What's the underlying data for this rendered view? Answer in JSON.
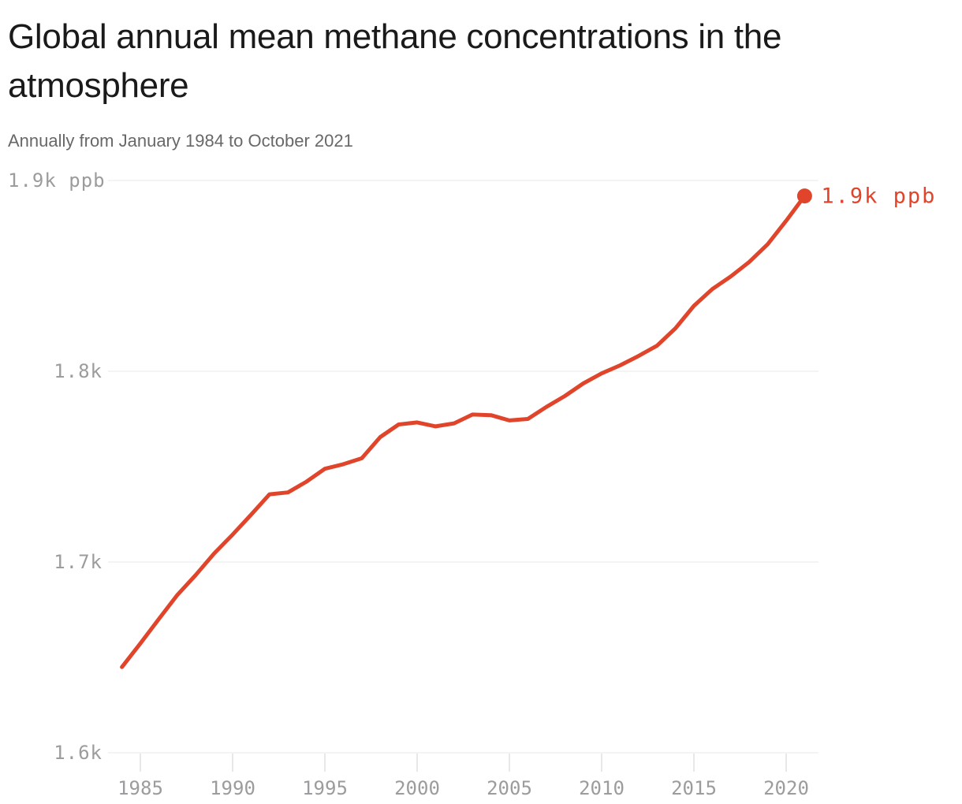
{
  "header": {
    "title": "Global annual mean methane concentrations in the atmosphere",
    "subtitle": "Annually from January 1984 to October 2021"
  },
  "chart_data": {
    "type": "line",
    "title": "Global annual mean methane concentrations in the atmosphere",
    "subtitle": "Annually from January 1984 to October 2021",
    "unit": "ppb",
    "xlabel": "",
    "ylabel": "ppb",
    "xlim": [
      1984,
      2021
    ],
    "ylim": [
      1600,
      1900
    ],
    "grid": "horizontal",
    "legend": "none",
    "x": [
      1984,
      1985,
      1986,
      1987,
      1988,
      1989,
      1990,
      1991,
      1992,
      1993,
      1994,
      1995,
      1996,
      1997,
      1998,
      1999,
      2000,
      2001,
      2002,
      2003,
      2004,
      2005,
      2006,
      2007,
      2008,
      2009,
      2010,
      2011,
      2012,
      2013,
      2014,
      2015,
      2016,
      2017,
      2018,
      2019,
      2020,
      2021
    ],
    "series": [
      {
        "name": "Global annual mean methane concentration (ppb)",
        "values": [
          1644.9,
          1657.3,
          1670.1,
          1682.7,
          1693.2,
          1704.5,
          1714.4,
          1724.8,
          1735.5,
          1736.5,
          1742.1,
          1748.9,
          1751.3,
          1754.4,
          1765.5,
          1772.1,
          1773.2,
          1771.1,
          1772.7,
          1777.3,
          1777.0,
          1774.2,
          1775.0,
          1781.3,
          1787.0,
          1793.6,
          1798.9,
          1803.1,
          1808.0,
          1813.4,
          1822.5,
          1834.3,
          1843.1,
          1849.7,
          1857.3,
          1866.6,
          1878.9,
          1891.9
        ]
      }
    ],
    "y_ticks": [
      {
        "value": 1900,
        "label": "1.9k ppb"
      },
      {
        "value": 1800,
        "label": "1.8k"
      },
      {
        "value": 1700,
        "label": "1.7k"
      },
      {
        "value": 1600,
        "label": "1.6k"
      }
    ],
    "x_ticks": [
      {
        "value": 1985,
        "label": "1985"
      },
      {
        "value": 1990,
        "label": "1990"
      },
      {
        "value": 1995,
        "label": "1995"
      },
      {
        "value": 2000,
        "label": "2000"
      },
      {
        "value": 2005,
        "label": "2005"
      },
      {
        "value": 2010,
        "label": "2010"
      },
      {
        "value": 2015,
        "label": "2015"
      },
      {
        "value": 2020,
        "label": "2020"
      }
    ],
    "end_label": "1.9k ppb",
    "colors": {
      "line": "#e0452b",
      "end_label": "#e0452b",
      "grid": "#e8e8e8",
      "tick": "#e0e0e0",
      "axis_text": "#9a9c9e",
      "title_text": "#1a1a1a",
      "subtitle_text": "#686868"
    }
  }
}
